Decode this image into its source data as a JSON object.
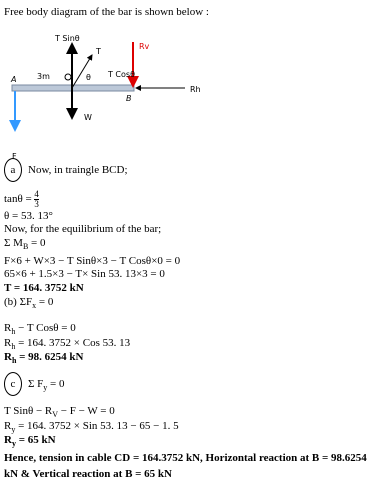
{
  "intro": "Free body diagram of the bar is shown below :",
  "diagram": {
    "t_sin": "T Sinθ",
    "t": "T",
    "rv": "Rv",
    "length": "3m",
    "point_a": "A",
    "theta": "θ",
    "t_cos": "T Cosθ",
    "rh": "Rh",
    "point_b": "B",
    "w": "W",
    "f": "F"
  },
  "part_a": {
    "marker": "a",
    "heading": "Now, in traingle BCD;",
    "tan_lhs": "tanθ = ",
    "tan_num": "4",
    "tan_den": "3",
    "theta": "θ = 53. 13°",
    "equilibrium": "Now, for the equilibrium of the bar;",
    "moment_sigma": "Σ M",
    "moment_sub": "B",
    "moment_rhs": " = 0",
    "moment_eq": "F×6 + W×3 − T Sinθ×3 − T Cosθ×0 = 0",
    "moment_values": "65×6 + 1.5×3 − T× Sin 53. 13×3 = 0",
    "result": "T = 164. 3752 kN"
  },
  "part_b": {
    "marker": "(b)",
    "sigma": "ΣF",
    "sub": "x",
    "rhs": " = 0",
    "eq_lhs": "R",
    "eq_sub": "h",
    "eq_rhs": " − T Cosθ = 0",
    "calc_lhs": "R",
    "calc_sub": "h",
    "calc_rhs": " = 164. 3752 × Cos 53. 13",
    "result_lhs": "R",
    "result_sub": "h",
    "result_rhs": " = 98. 6254 kN"
  },
  "part_c": {
    "marker": "c",
    "sigma": "Σ F",
    "sub": "y",
    "rhs": " = 0",
    "eq_lhs": "T Sinθ − R",
    "eq_sub": "V",
    "eq_rhs": " − F − W = 0",
    "calc_lhs": "R",
    "calc_sub": "y",
    "calc_rhs": " = 164. 3752 × Sin 53. 13 − 65 − 1. 5",
    "result_lhs": "R",
    "result_sub": "y",
    "result_rhs": " = 65 kN"
  },
  "conclusion": "Hence, tension in cable CD = 164.3752 kN, Horizontal reaction at B = 98.6254 kN & Vertical reaction at B = 65 kN"
}
